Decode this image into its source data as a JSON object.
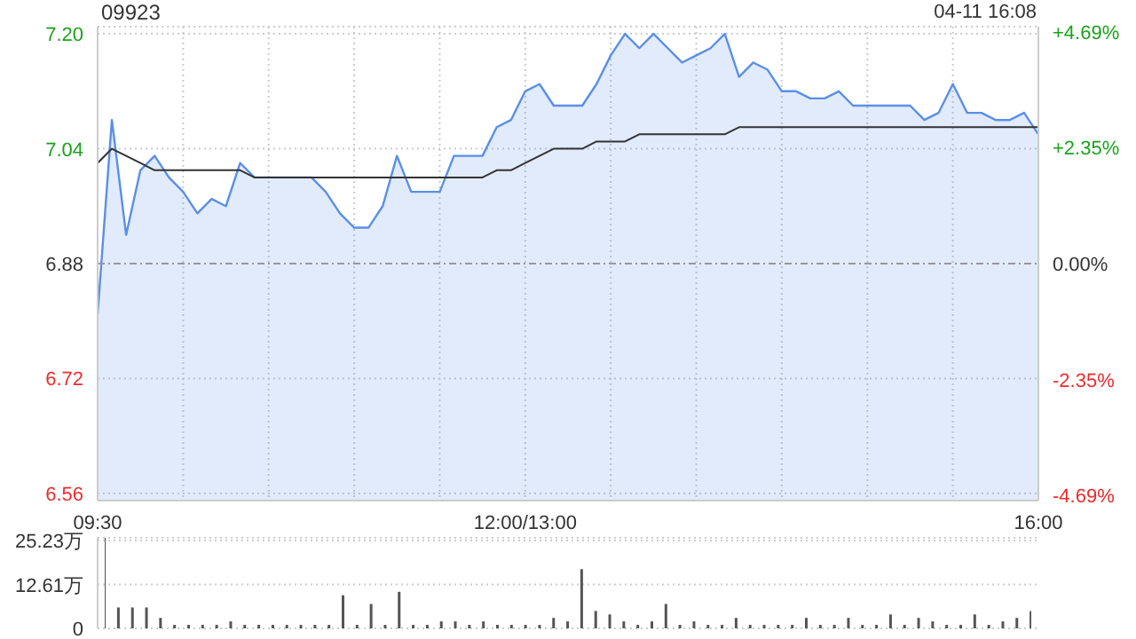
{
  "chart_data": [
    {
      "type": "area",
      "title": "09923",
      "annotations": [
        "04-11 16:08"
      ],
      "categories": [
        "09:30",
        null,
        null,
        null,
        null,
        null,
        null,
        null,
        null,
        null,
        null,
        null,
        null,
        null,
        null,
        null,
        null,
        null,
        null,
        null,
        null,
        null,
        null,
        null,
        null,
        null,
        null,
        null,
        null,
        null,
        "12:00/13:00",
        null,
        null,
        null,
        null,
        null,
        null,
        null,
        null,
        null,
        null,
        null,
        null,
        null,
        null,
        null,
        null,
        null,
        null,
        null,
        null,
        null,
        null,
        null,
        null,
        null,
        null,
        null,
        null,
        null,
        null,
        null,
        null,
        null,
        null,
        null,
        "16:00"
      ],
      "series": [
        {
          "color": "#5a8fe8",
          "values": [
            6.81,
            7.08,
            6.92,
            7.01,
            7.03,
            7.0,
            6.98,
            6.95,
            6.97,
            6.96,
            7.02,
            7.0,
            7.0,
            7.0,
            7.0,
            7.0,
            6.98,
            6.95,
            6.93,
            6.93,
            6.96,
            7.03,
            6.98,
            6.98,
            6.98,
            7.03,
            7.03,
            7.03,
            7.07,
            7.08,
            7.12,
            7.13,
            7.1,
            7.1,
            7.1,
            7.13,
            7.17,
            7.2,
            7.18,
            7.2,
            7.18,
            7.16,
            7.17,
            7.18,
            7.2,
            7.14,
            7.16,
            7.15,
            7.12,
            7.12,
            7.11,
            7.11,
            7.12,
            7.1,
            7.1,
            7.1,
            7.1,
            7.1,
            7.08,
            7.09,
            7.13,
            7.09,
            7.09,
            7.08,
            7.08,
            7.09,
            7.06
          ]
        },
        {
          "type": "line",
          "color": "#333333",
          "values": [
            7.02,
            7.04,
            7.03,
            7.02,
            7.01,
            7.01,
            7.01,
            7.01,
            7.01,
            7.01,
            7.01,
            7.0,
            7.0,
            7.0,
            7.0,
            7.0,
            7.0,
            7.0,
            7.0,
            7.0,
            7.0,
            7.0,
            7.0,
            7.0,
            7.0,
            7.0,
            7.0,
            7.0,
            7.01,
            7.01,
            7.02,
            7.03,
            7.04,
            7.04,
            7.04,
            7.05,
            7.05,
            7.05,
            7.06,
            7.06,
            7.06,
            7.06,
            7.06,
            7.06,
            7.06,
            7.07,
            7.07,
            7.07,
            7.07,
            7.07,
            7.07,
            7.07,
            7.07,
            7.07,
            7.07,
            7.07,
            7.07,
            7.07,
            7.07,
            7.07,
            7.07,
            7.07,
            7.07,
            7.07,
            7.07,
            7.07,
            7.07
          ]
        }
      ],
      "ylim": [
        6.55,
        7.21
      ],
      "yticks": [
        6.56,
        6.72,
        6.88,
        7.04,
        {
          "value": 7.2,
          "label": "7.20"
        }
      ],
      "y2lim": [
        -4.8,
        4.8
      ],
      "y2ticks": [
        {
          "value": -4.69,
          "label": "-4.69%"
        },
        {
          "value": -2.35,
          "label": "-2.35%"
        },
        {
          "value": 0,
          "label": "0.00%"
        },
        {
          "value": 2.35,
          "label": "+2.35%"
        },
        {
          "value": 4.69,
          "label": "+4.69%"
        }
      ],
      "ref_lines": [
        {
          "axis": "y",
          "value": 6.88,
          "color": "#999999",
          "line_style": "dashed"
        }
      ],
      "grid": true,
      "legend": false
    },
    {
      "type": "bar",
      "categories": [
        null,
        null,
        null,
        null,
        null,
        null,
        null,
        null,
        null,
        null,
        null,
        null,
        null,
        null,
        null,
        null,
        null,
        null,
        null,
        null,
        null,
        null,
        null,
        null,
        null,
        null,
        null,
        null,
        null,
        null,
        null,
        null,
        null,
        null,
        null,
        null,
        null,
        null,
        null,
        null,
        null,
        null,
        null,
        null,
        null,
        null,
        null,
        null,
        null,
        null,
        null,
        null,
        null,
        null,
        null,
        null,
        null,
        null,
        null,
        null,
        null,
        null,
        null,
        null,
        null,
        null,
        null
      ],
      "series": [
        {
          "color": "#555555",
          "values": [
            26,
            6,
            6,
            6,
            3,
            1,
            1,
            1,
            1,
            2,
            1,
            1,
            1,
            1,
            1,
            1,
            1,
            9.5,
            1,
            7,
            1,
            10.5,
            1,
            1,
            2,
            2,
            1,
            2,
            1,
            1,
            1,
            1,
            3,
            2,
            17,
            5,
            4,
            2,
            1,
            2,
            7,
            1,
            2,
            1,
            1,
            3,
            1,
            1,
            1,
            1,
            3,
            1,
            1,
            3,
            1,
            1,
            4,
            1,
            3,
            2,
            1,
            1,
            4,
            1,
            2,
            3,
            5
          ]
        }
      ],
      "ylim": [
        0,
        26
      ],
      "yticks": [
        0,
        {
          "value": 12.61,
          "label": "12.61万"
        },
        {
          "value": 25.23,
          "label": "25.23万"
        }
      ],
      "grid": "y",
      "tick_labels": "y",
      "legend": false
    }
  ]
}
